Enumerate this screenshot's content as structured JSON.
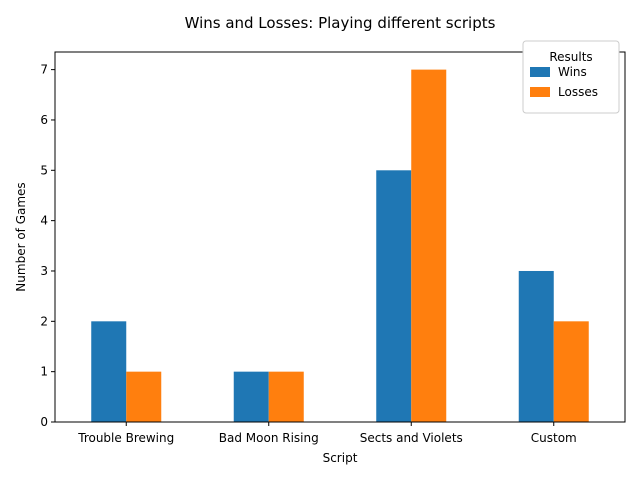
{
  "chart_data": {
    "type": "bar",
    "title": "Wins and Losses: Playing different scripts",
    "xlabel": "Script",
    "ylabel": "Number of Games",
    "categories": [
      "Trouble Brewing",
      "Bad Moon Rising",
      "Sects and Violets",
      "Custom"
    ],
    "series": [
      {
        "name": "Wins",
        "values": [
          2,
          1,
          5,
          3
        ],
        "color": "#1f77b4"
      },
      {
        "name": "Losses",
        "values": [
          1,
          1,
          7,
          2
        ],
        "color": "#ff7f0e"
      }
    ],
    "ylim": [
      0,
      7.35
    ],
    "yticks": [
      "0",
      "1",
      "2",
      "3",
      "4",
      "5",
      "6",
      "7"
    ],
    "grid": false,
    "legend": {
      "title": "Results",
      "position": "top-right"
    }
  }
}
